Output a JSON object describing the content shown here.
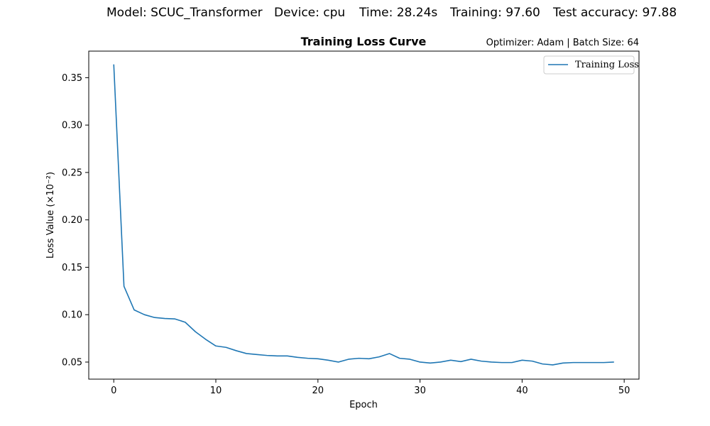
{
  "header": {
    "model": "Model: SCUC_Transformer",
    "device": "Device: cpu",
    "time": "Time: 28.24s",
    "training": "Training: 97.60",
    "test_accuracy": "Test accuracy: 97.88"
  },
  "chart_data": {
    "type": "line",
    "title": "Training Loss Curve",
    "subtitle": "Optimizer: Adam | Batch Size: 64",
    "xlabel": "Epoch",
    "ylabel": "Loss Value (×10⁻²)",
    "xlim": [
      -2.45,
      51.45
    ],
    "ylim": [
      0.032,
      0.378
    ],
    "xticks": [
      0,
      10,
      20,
      30,
      40,
      50
    ],
    "yticks": [
      0.05,
      0.1,
      0.15,
      0.2,
      0.25,
      0.3,
      0.35
    ],
    "xtick_labels": [
      "0",
      "10",
      "20",
      "30",
      "40",
      "50"
    ],
    "ytick_labels": [
      "0.05",
      "0.10",
      "0.15",
      "0.20",
      "0.25",
      "0.30",
      "0.35"
    ],
    "grid": false,
    "legend_position": "top-right",
    "series_color": "#1f77b4",
    "series": [
      {
        "name": "Training Loss",
        "x": [
          0,
          1,
          2,
          3,
          4,
          5,
          6,
          7,
          8,
          9,
          10,
          11,
          12,
          13,
          14,
          15,
          16,
          17,
          18,
          19,
          20,
          21,
          22,
          23,
          24,
          25,
          26,
          27,
          28,
          29,
          30,
          31,
          32,
          33,
          34,
          35,
          36,
          37,
          38,
          39,
          40,
          41,
          42,
          43,
          44,
          45,
          46,
          47,
          48,
          49
        ],
        "values": [
          0.364,
          0.13,
          0.105,
          0.1,
          0.097,
          0.096,
          0.0955,
          0.092,
          0.082,
          0.074,
          0.067,
          0.0655,
          0.062,
          0.059,
          0.058,
          0.057,
          0.0565,
          0.0565,
          0.055,
          0.054,
          0.0535,
          0.052,
          0.05,
          0.053,
          0.054,
          0.0535,
          0.0555,
          0.059,
          0.054,
          0.053,
          0.05,
          0.049,
          0.05,
          0.052,
          0.0505,
          0.053,
          0.051,
          0.05,
          0.0495,
          0.0495,
          0.052,
          0.051,
          0.048,
          0.047,
          0.049,
          0.0495,
          0.0495,
          0.0495,
          0.0495,
          0.05
        ]
      }
    ]
  }
}
